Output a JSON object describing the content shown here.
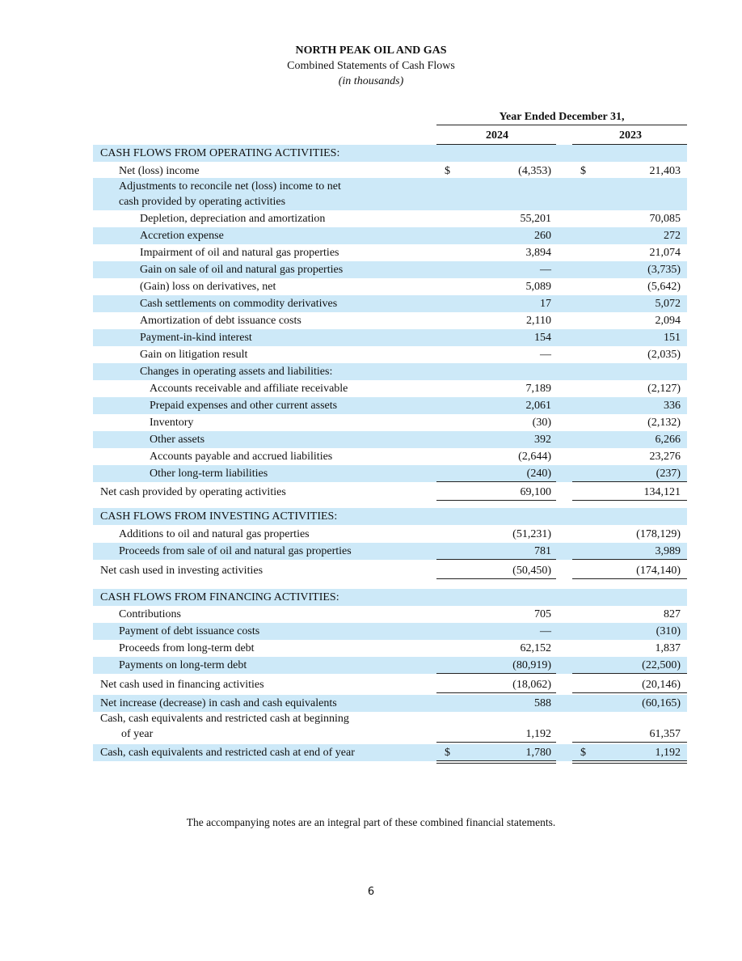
{
  "header": {
    "company": "NORTH PEAK OIL AND GAS",
    "title": "Combined Statements of Cash Flows",
    "subtitle": "(in thousands)"
  },
  "table": {
    "period": "Year Ended December 31,",
    "columns": [
      "2024",
      "2023"
    ],
    "rows": [
      {
        "label": [
          "CASH FLOWS FROM OPERATING ACTIVITIES:"
        ]
      },
      {
        "label": [
          "Net (loss) income"
        ],
        "currency": [
          "$",
          "$"
        ],
        "values": [
          "(4,353)",
          "21,403"
        ]
      },
      {
        "label": [
          "Adjustments to reconcile net (loss) income to net",
          "cash provided by operating activities"
        ]
      },
      {
        "label": [
          "Depletion, depreciation and amortization"
        ],
        "values": [
          "55,201",
          "70,085"
        ]
      },
      {
        "label": [
          "Accretion expense"
        ],
        "values": [
          "260",
          "272"
        ]
      },
      {
        "label": [
          "Impairment of oil and natural gas properties"
        ],
        "values": [
          "3,894",
          "21,074"
        ]
      },
      {
        "label": [
          "Gain on sale of oil and natural gas properties"
        ],
        "values": [
          "—",
          "(3,735)"
        ]
      },
      {
        "label": [
          "(Gain) loss on derivatives, net"
        ],
        "values": [
          "5,089",
          "(5,642)"
        ]
      },
      {
        "label": [
          "Cash settlements on commodity derivatives"
        ],
        "values": [
          "17",
          "5,072"
        ]
      },
      {
        "label": [
          "Amortization of debt issuance costs"
        ],
        "values": [
          "2,110",
          "2,094"
        ]
      },
      {
        "label": [
          "Payment-in-kind interest"
        ],
        "values": [
          "154",
          "151"
        ]
      },
      {
        "label": [
          "Gain on litigation result"
        ],
        "values": [
          "—",
          "(2,035)"
        ]
      },
      {
        "label": [
          "Changes in operating assets and liabilities:"
        ]
      },
      {
        "label": [
          "Accounts receivable and affiliate receivable"
        ],
        "values": [
          "7,189",
          "(2,127)"
        ]
      },
      {
        "label": [
          "Prepaid expenses and other current assets"
        ],
        "values": [
          "2,061",
          "336"
        ]
      },
      {
        "label": [
          "Inventory"
        ],
        "values": [
          "(30)",
          "(2,132)"
        ]
      },
      {
        "label": [
          "Other assets"
        ],
        "values": [
          "392",
          "6,266"
        ]
      },
      {
        "label": [
          "Accounts payable and accrued liabilities"
        ],
        "values": [
          "(2,644)",
          "23,276"
        ]
      },
      {
        "label": [
          "Other long-term liabilities"
        ],
        "values": [
          "(240)",
          "(237)"
        ]
      },
      {
        "label": [
          "Net cash provided by operating activities"
        ],
        "values": [
          "69,100",
          "134,121"
        ]
      },
      {
        "label": [
          "CASH FLOWS FROM INVESTING ACTIVITIES:"
        ]
      },
      {
        "label": [
          "Additions to oil and natural gas properties"
        ],
        "values": [
          "(51,231)",
          "(178,129)"
        ]
      },
      {
        "label": [
          "Proceeds from sale of oil and natural gas properties"
        ],
        "values": [
          "781",
          "3,989"
        ]
      },
      {
        "label": [
          "Net cash used in investing activities"
        ],
        "values": [
          "(50,450)",
          "(174,140)"
        ]
      },
      {
        "label": [
          "CASH FLOWS FROM FINANCING ACTIVITIES:"
        ]
      },
      {
        "label": [
          "Contributions"
        ],
        "values": [
          "705",
          "827"
        ]
      },
      {
        "label": [
          "Payment of debt issuance costs"
        ],
        "values": [
          "—",
          "(310)"
        ]
      },
      {
        "label": [
          "Proceeds from long-term debt"
        ],
        "values": [
          "62,152",
          "1,837"
        ]
      },
      {
        "label": [
          "Payments on long-term debt"
        ],
        "values": [
          "(80,919)",
          "(22,500)"
        ]
      },
      {
        "label": [
          "Net cash used in financing activities"
        ],
        "values": [
          "(18,062)",
          "(20,146)"
        ]
      },
      {
        "label": [
          "Net increase (decrease) in cash and cash equivalents"
        ],
        "values": [
          "588",
          "(60,165)"
        ]
      },
      {
        "label": [
          "Cash, cash equivalents and restricted cash at beginning",
          "of year"
        ],
        "values": [
          "1,192",
          "61,357"
        ]
      },
      {
        "label": [
          "Cash, cash equivalents and restricted cash at end of year"
        ],
        "currency": [
          "$",
          "$"
        ],
        "values": [
          "1,780",
          "1,192"
        ]
      }
    ]
  },
  "footnote": "The accompanying notes are an integral part of these combined financial statements.",
  "page_number": "6"
}
